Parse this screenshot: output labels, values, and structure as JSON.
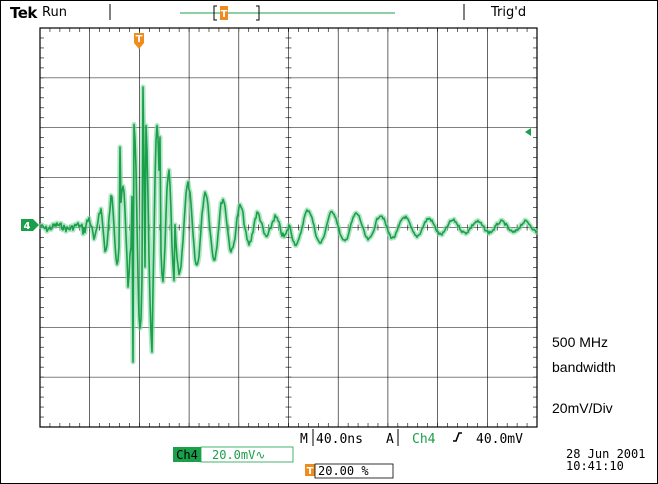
{
  "header": {
    "brand": "Tek",
    "status": "Run",
    "trigger_state": "Trig'd"
  },
  "readouts": {
    "timebase_prefix": "M",
    "timebase_value": "40.0ns",
    "trigger_prefix": "A",
    "trigger_source": "Ch4",
    "trigger_level": "40.0mV",
    "channel_label": "Ch4",
    "channel_scale": "20.0mV∿",
    "trigger_position_marker": "T",
    "trigger_position": "20.00 %",
    "channel_marker": "4"
  },
  "annotations": {
    "bandwidth_line1": "500 MHz",
    "bandwidth_line2": "bandwidth",
    "vdiv": "20mV/Div"
  },
  "timestamp": {
    "date": "28 Jun  2001",
    "time": "10:41:10"
  },
  "colors": {
    "trace": "#1aa04a",
    "marker": "#f08c1e",
    "grid": "#000000",
    "label_bg": "#1aa04a"
  },
  "icons": {
    "trigger_marker": "trigger-T-marker-icon",
    "trigger_slope": "rising-edge-icon",
    "channel_ground": "channel-4-ground-icon",
    "trigger_level_marker": "trigger-level-arrow-icon"
  }
}
